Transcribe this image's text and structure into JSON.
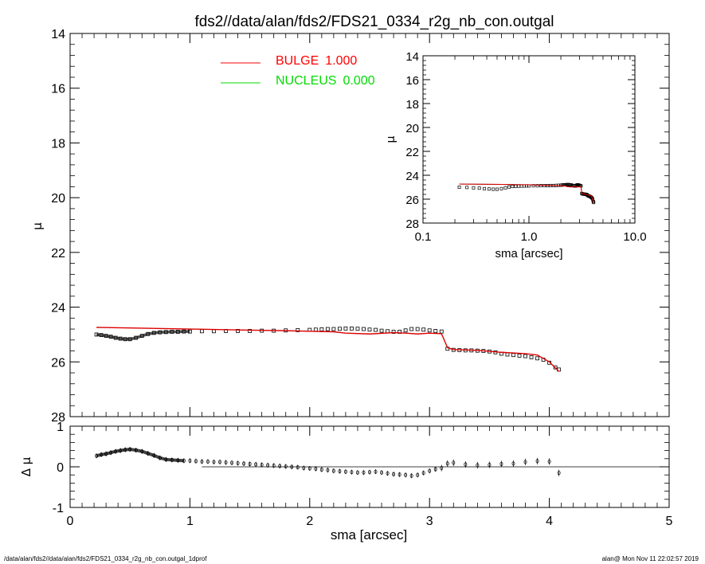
{
  "chart_data": {
    "title": "fds2//data/alan/fds2/FDS21_0334_r2g_nb_con.outgal",
    "legend": [
      {
        "name": "BULGE",
        "value": "1.000",
        "color": "#ff0000"
      },
      {
        "name": "NUCLEUS",
        "value": "0.000",
        "color": "#00dd00"
      }
    ],
    "main": {
      "type": "line",
      "ylabel": "μ",
      "xlim": [
        0,
        5
      ],
      "ylim": [
        28,
        14
      ],
      "xticks": [
        "0",
        "1",
        "2",
        "3",
        "4",
        "5"
      ],
      "yticks": [
        "14",
        "16",
        "18",
        "20",
        "22",
        "24",
        "26",
        "28"
      ],
      "data": {
        "x": [
          0.22,
          0.26,
          0.3,
          0.34,
          0.38,
          0.42,
          0.46,
          0.5,
          0.55,
          0.6,
          0.65,
          0.7,
          0.75,
          0.8,
          0.85,
          0.9,
          0.95,
          1.0,
          1.1,
          1.2,
          1.3,
          1.4,
          1.5,
          1.6,
          1.7,
          1.8,
          1.9,
          2.0,
          2.05,
          2.1,
          2.15,
          2.2,
          2.25,
          2.3,
          2.35,
          2.4,
          2.45,
          2.5,
          2.55,
          2.6,
          2.65,
          2.7,
          2.75,
          2.8,
          2.85,
          2.9,
          2.95,
          3.0,
          3.05,
          3.1,
          3.15,
          3.2,
          3.25,
          3.3,
          3.35,
          3.4,
          3.45,
          3.5,
          3.55,
          3.6,
          3.65,
          3.7,
          3.75,
          3.8,
          3.85,
          3.9,
          3.95,
          4.0,
          4.05,
          4.08
        ],
        "y": [
          25.0,
          25.02,
          25.05,
          25.08,
          25.12,
          25.15,
          25.17,
          25.17,
          25.12,
          25.05,
          24.98,
          24.94,
          24.92,
          24.91,
          24.9,
          24.9,
          24.89,
          24.89,
          24.88,
          24.88,
          24.87,
          24.87,
          24.87,
          24.86,
          24.86,
          24.85,
          24.84,
          24.83,
          24.82,
          24.81,
          24.8,
          24.8,
          24.79,
          24.78,
          24.78,
          24.79,
          24.8,
          24.82,
          24.83,
          24.86,
          24.88,
          24.9,
          24.9,
          24.85,
          24.8,
          24.8,
          24.82,
          24.85,
          24.87,
          24.89,
          25.52,
          25.56,
          25.57,
          25.58,
          25.58,
          25.59,
          25.6,
          25.62,
          25.65,
          25.7,
          25.73,
          25.75,
          25.77,
          25.79,
          25.83,
          25.87,
          25.92,
          26.03,
          26.2,
          26.28
        ]
      },
      "model": {
        "x": [
          0.22,
          0.5,
          1.0,
          1.5,
          1.8,
          2.0,
          2.2,
          2.3,
          2.5,
          2.7,
          2.8,
          2.9,
          3.0,
          3.1,
          3.15,
          3.2,
          3.4,
          3.6,
          3.8,
          3.9,
          4.0,
          4.08
        ],
        "y": [
          24.74,
          24.76,
          24.8,
          24.84,
          24.86,
          24.88,
          24.9,
          24.95,
          24.98,
          24.93,
          24.95,
          24.98,
          24.95,
          24.97,
          25.48,
          25.55,
          25.58,
          25.65,
          25.7,
          25.75,
          26.0,
          26.35
        ]
      }
    },
    "inset": {
      "xlabel": "sma [arcsec]",
      "ylabel": "μ",
      "xscale": "log",
      "xlim": [
        0.1,
        10.0
      ],
      "ylim": [
        28,
        14
      ],
      "xticks": [
        "0.1",
        "1.0",
        "10.0"
      ],
      "yticks": [
        "14",
        "16",
        "18",
        "20",
        "22",
        "24",
        "26",
        "28"
      ]
    },
    "residual": {
      "xlabel": "sma [arcsec]",
      "ylabel": "Δ μ",
      "xlim": [
        0,
        5
      ],
      "ylim": [
        -1,
        1
      ],
      "xticks": [
        "0",
        "1",
        "2",
        "3",
        "4",
        "5"
      ],
      "yticks": [
        "1",
        "0",
        "-1"
      ],
      "x": [
        0.22,
        0.26,
        0.3,
        0.34,
        0.38,
        0.42,
        0.46,
        0.5,
        0.55,
        0.6,
        0.65,
        0.7,
        0.75,
        0.8,
        0.85,
        0.9,
        0.95,
        1.0,
        1.05,
        1.1,
        1.15,
        1.2,
        1.25,
        1.3,
        1.35,
        1.4,
        1.45,
        1.5,
        1.55,
        1.6,
        1.65,
        1.7,
        1.75,
        1.8,
        1.85,
        1.9,
        1.95,
        2.0,
        2.05,
        2.1,
        2.15,
        2.2,
        2.25,
        2.3,
        2.35,
        2.4,
        2.45,
        2.5,
        2.55,
        2.6,
        2.65,
        2.7,
        2.75,
        2.8,
        2.85,
        2.9,
        2.95,
        3.0,
        3.05,
        3.1,
        3.15,
        3.2,
        3.3,
        3.4,
        3.5,
        3.6,
        3.7,
        3.8,
        3.9,
        4.0,
        4.08
      ],
      "y": [
        0.27,
        0.3,
        0.32,
        0.35,
        0.38,
        0.4,
        0.42,
        0.43,
        0.41,
        0.38,
        0.33,
        0.28,
        0.22,
        0.18,
        0.17,
        0.16,
        0.15,
        0.15,
        0.14,
        0.13,
        0.13,
        0.12,
        0.12,
        0.11,
        0.1,
        0.09,
        0.08,
        0.07,
        0.06,
        0.05,
        0.04,
        0.03,
        0.02,
        0.01,
        0.0,
        -0.01,
        -0.03,
        -0.04,
        -0.05,
        -0.07,
        -0.08,
        -0.1,
        -0.11,
        -0.12,
        -0.13,
        -0.14,
        -0.14,
        -0.13,
        -0.12,
        -0.14,
        -0.16,
        -0.18,
        -0.19,
        -0.2,
        -0.22,
        -0.2,
        -0.15,
        -0.1,
        -0.06,
        -0.03,
        0.08,
        0.1,
        0.06,
        0.04,
        0.05,
        0.07,
        0.08,
        0.12,
        0.14,
        0.13,
        -0.15
      ]
    }
  },
  "footer": {
    "left": "/data/alan/fds2//data/alan/fds2/FDS21_0334_r2g_nb_con.outgal_1dprof",
    "right": "alan@  Mon Nov 11 22:02:57 2019"
  }
}
